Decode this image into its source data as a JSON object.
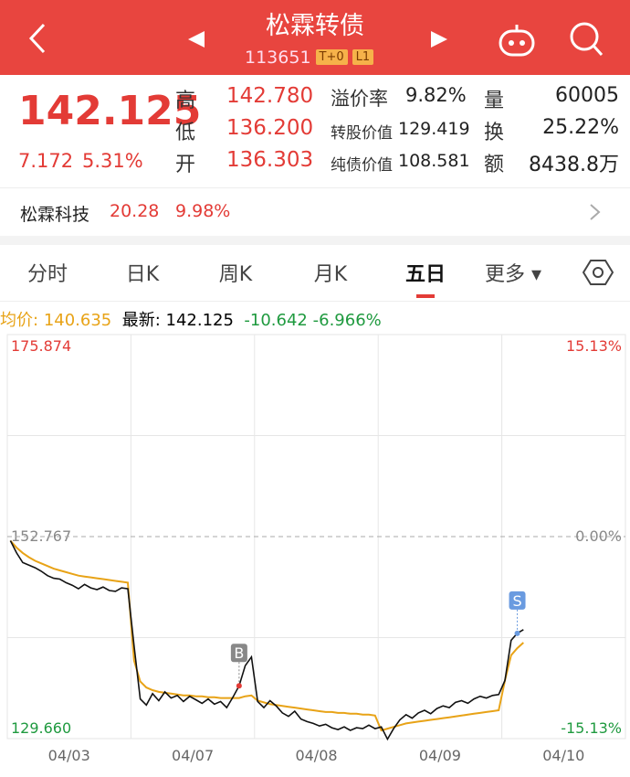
{
  "header": {
    "title": "松霖转债",
    "code": "113651",
    "badges": [
      "T+0",
      "L1"
    ]
  },
  "quote": {
    "price": "142.125",
    "change": "7.172",
    "change_pct": "5.31%",
    "stats": [
      {
        "label": "高",
        "value": "142.780"
      },
      {
        "label": "低",
        "value": "136.200"
      },
      {
        "label": "开",
        "value": "136.303"
      }
    ],
    "metrics": [
      {
        "label": "溢价率",
        "value": "9.82%"
      },
      {
        "label": "转股价值",
        "value": "129.419"
      },
      {
        "label": "纯债价值",
        "value": "108.581"
      }
    ],
    "trade": [
      {
        "label": "量",
        "value": "60005"
      },
      {
        "label": "换",
        "value": "25.22%"
      },
      {
        "label": "额",
        "value": "8438.8万"
      }
    ]
  },
  "underlying": {
    "name": "松霖科技",
    "price": "20.28",
    "change_pct": "9.98%"
  },
  "tabs": [
    "分时",
    "日K",
    "周K",
    "月K",
    "五日",
    "更多"
  ],
  "info": {
    "avg_label": "均价:",
    "avg": "140.635",
    "latest_label": "最新:",
    "latest": "142.125",
    "change": "-10.642",
    "change_pct": "-6.966%"
  },
  "chart_data": {
    "type": "line",
    "x_labels": [
      "04/03",
      "04/07",
      "04/08",
      "04/09",
      "04/10"
    ],
    "ylim": [
      129.66,
      175.874
    ],
    "yticks": [
      {
        "value": 129.66,
        "label": "129.660"
      },
      {
        "value": 152.767,
        "label": "152.767"
      },
      {
        "value": 175.874,
        "label": "175.874"
      }
    ],
    "y2lim": [
      -15.13,
      15.13
    ],
    "y2ticks": [
      {
        "value": -15.13,
        "label": "-15.13%"
      },
      {
        "value": 0,
        "label": "0.00%"
      },
      {
        "value": 15.13,
        "label": "15.13%"
      }
    ],
    "markers": [
      "B",
      "S"
    ],
    "series": [
      {
        "color": "#111111",
        "values": [
          152.3,
          150.9,
          149.8,
          149.5,
          149.2,
          148.8,
          148.3,
          148.0,
          147.9,
          147.5,
          147.2,
          146.8,
          147.3,
          146.9,
          146.7,
          147.0,
          146.6,
          146.5,
          146.9,
          146.8,
          140.3,
          134.2,
          133.5,
          134.8,
          134.0,
          135.0,
          134.3,
          134.6,
          133.9,
          134.5,
          134.1,
          133.7,
          134.2,
          133.6,
          133.9,
          133.2,
          134.4,
          135.7,
          138.0,
          139.0,
          133.9,
          133.2,
          134.0,
          133.4,
          132.6,
          132.2,
          132.8,
          131.9,
          131.6,
          131.4,
          131.1,
          131.3,
          130.9,
          130.7,
          131.0,
          130.6,
          130.9,
          130.8,
          131.2,
          130.8,
          131.0,
          129.6,
          130.8,
          131.8,
          132.4,
          132.0,
          132.6,
          132.9,
          132.5,
          133.1,
          133.4,
          133.2,
          133.8,
          134.0,
          133.7,
          134.2,
          134.5,
          134.3,
          134.6,
          134.7,
          136.3,
          140.9,
          141.7,
          142.125,
          null,
          null,
          null,
          null,
          null,
          null,
          null,
          null,
          null,
          null,
          null,
          null,
          null,
          null,
          null,
          null
        ]
      },
      {
        "color": "#e8a317",
        "values": [
          152.3,
          151.5,
          150.9,
          150.4,
          150.0,
          149.7,
          149.4,
          149.1,
          148.9,
          148.7,
          148.5,
          148.3,
          148.2,
          148.1,
          148.0,
          147.9,
          147.8,
          147.7,
          147.6,
          147.5,
          138.6,
          136.2,
          135.5,
          135.2,
          135.0,
          134.9,
          134.8,
          134.7,
          134.6,
          134.6,
          134.5,
          134.5,
          134.4,
          134.4,
          134.3,
          134.3,
          134.3,
          134.3,
          134.5,
          134.6,
          134.0,
          133.8,
          133.6,
          133.5,
          133.4,
          133.3,
          133.2,
          133.1,
          133.0,
          132.9,
          132.8,
          132.7,
          132.7,
          132.6,
          132.6,
          132.5,
          132.5,
          132.4,
          132.4,
          132.3,
          130.6,
          130.8,
          131.0,
          131.2,
          131.4,
          131.5,
          131.6,
          131.7,
          131.8,
          131.9,
          132.0,
          132.1,
          132.2,
          132.3,
          132.4,
          132.5,
          132.6,
          132.7,
          132.8,
          132.9,
          136.3,
          139.2,
          140.0,
          140.635,
          null,
          null,
          null,
          null,
          null,
          null,
          null,
          null,
          null,
          null,
          null,
          null,
          null,
          null,
          null,
          null
        ]
      }
    ]
  }
}
